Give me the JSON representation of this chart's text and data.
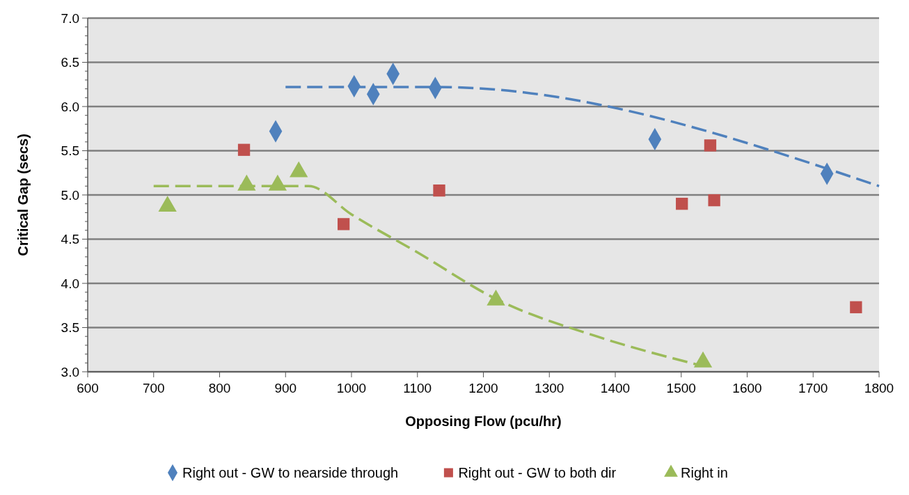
{
  "chart_data": {
    "type": "scatter",
    "xlabel": "Opposing Flow (pcu/hr)",
    "ylabel": "Critical Gap (secs)",
    "xlim": [
      600,
      1800
    ],
    "xticks": [
      600,
      700,
      800,
      900,
      1000,
      1100,
      1200,
      1300,
      1400,
      1500,
      1600,
      1700,
      1800
    ],
    "ylim": [
      3.0,
      7.0
    ],
    "yticks": [
      {
        "value": 3,
        "label": "3.0"
      },
      {
        "value": 3.5,
        "label": "3.5"
      },
      {
        "value": 4,
        "label": "4.0"
      },
      {
        "value": 4.5,
        "label": "4.5"
      },
      {
        "value": 5,
        "label": "5.0"
      },
      {
        "value": 5.5,
        "label": "5.5"
      },
      {
        "value": 6,
        "label": "6.0"
      },
      {
        "value": 6.5,
        "label": "6.5"
      },
      {
        "value": 7,
        "label": "7.0"
      }
    ],
    "grid": "y",
    "legend": "bottom",
    "series": [
      {
        "type": "line",
        "color": "#4f81bd",
        "line_style": "dashed",
        "marker": "none",
        "x": [
          900,
          1130,
          1800
        ],
        "values": [
          6.22,
          6.22,
          5.1
        ]
      },
      {
        "type": "line",
        "color": "#9bbb59",
        "line_style": "dashed",
        "marker": "none",
        "x": [
          700,
          935,
          1000,
          1100,
          1220,
          1372,
          1530
        ],
        "values": [
          5.1,
          5.1,
          4.78,
          4.35,
          3.82,
          3.4,
          3.07
        ]
      },
      {
        "name": "Right out - GW to nearside through",
        "color": "#4f81bd",
        "marker": "diamond",
        "x": [
          885,
          1004,
          1033,
          1063,
          1127,
          1460,
          1721
        ],
        "values": [
          5.72,
          6.23,
          6.14,
          6.37,
          6.21,
          5.63,
          5.24
        ]
      },
      {
        "name": "Right out - GW to both dir",
        "color": "#c0504d",
        "marker": "square",
        "x": [
          837,
          988,
          1133,
          1501,
          1544,
          1550,
          1765
        ],
        "values": [
          5.51,
          4.67,
          5.05,
          4.9,
          5.56,
          4.94,
          3.73
        ]
      },
      {
        "name": "Right in",
        "color": "#9bbb59",
        "marker": "triangle",
        "x": [
          721,
          841,
          888,
          920,
          1219,
          1533
        ],
        "values": [
          4.87,
          5.11,
          5.11,
          5.26,
          3.81,
          3.11
        ]
      }
    ]
  }
}
